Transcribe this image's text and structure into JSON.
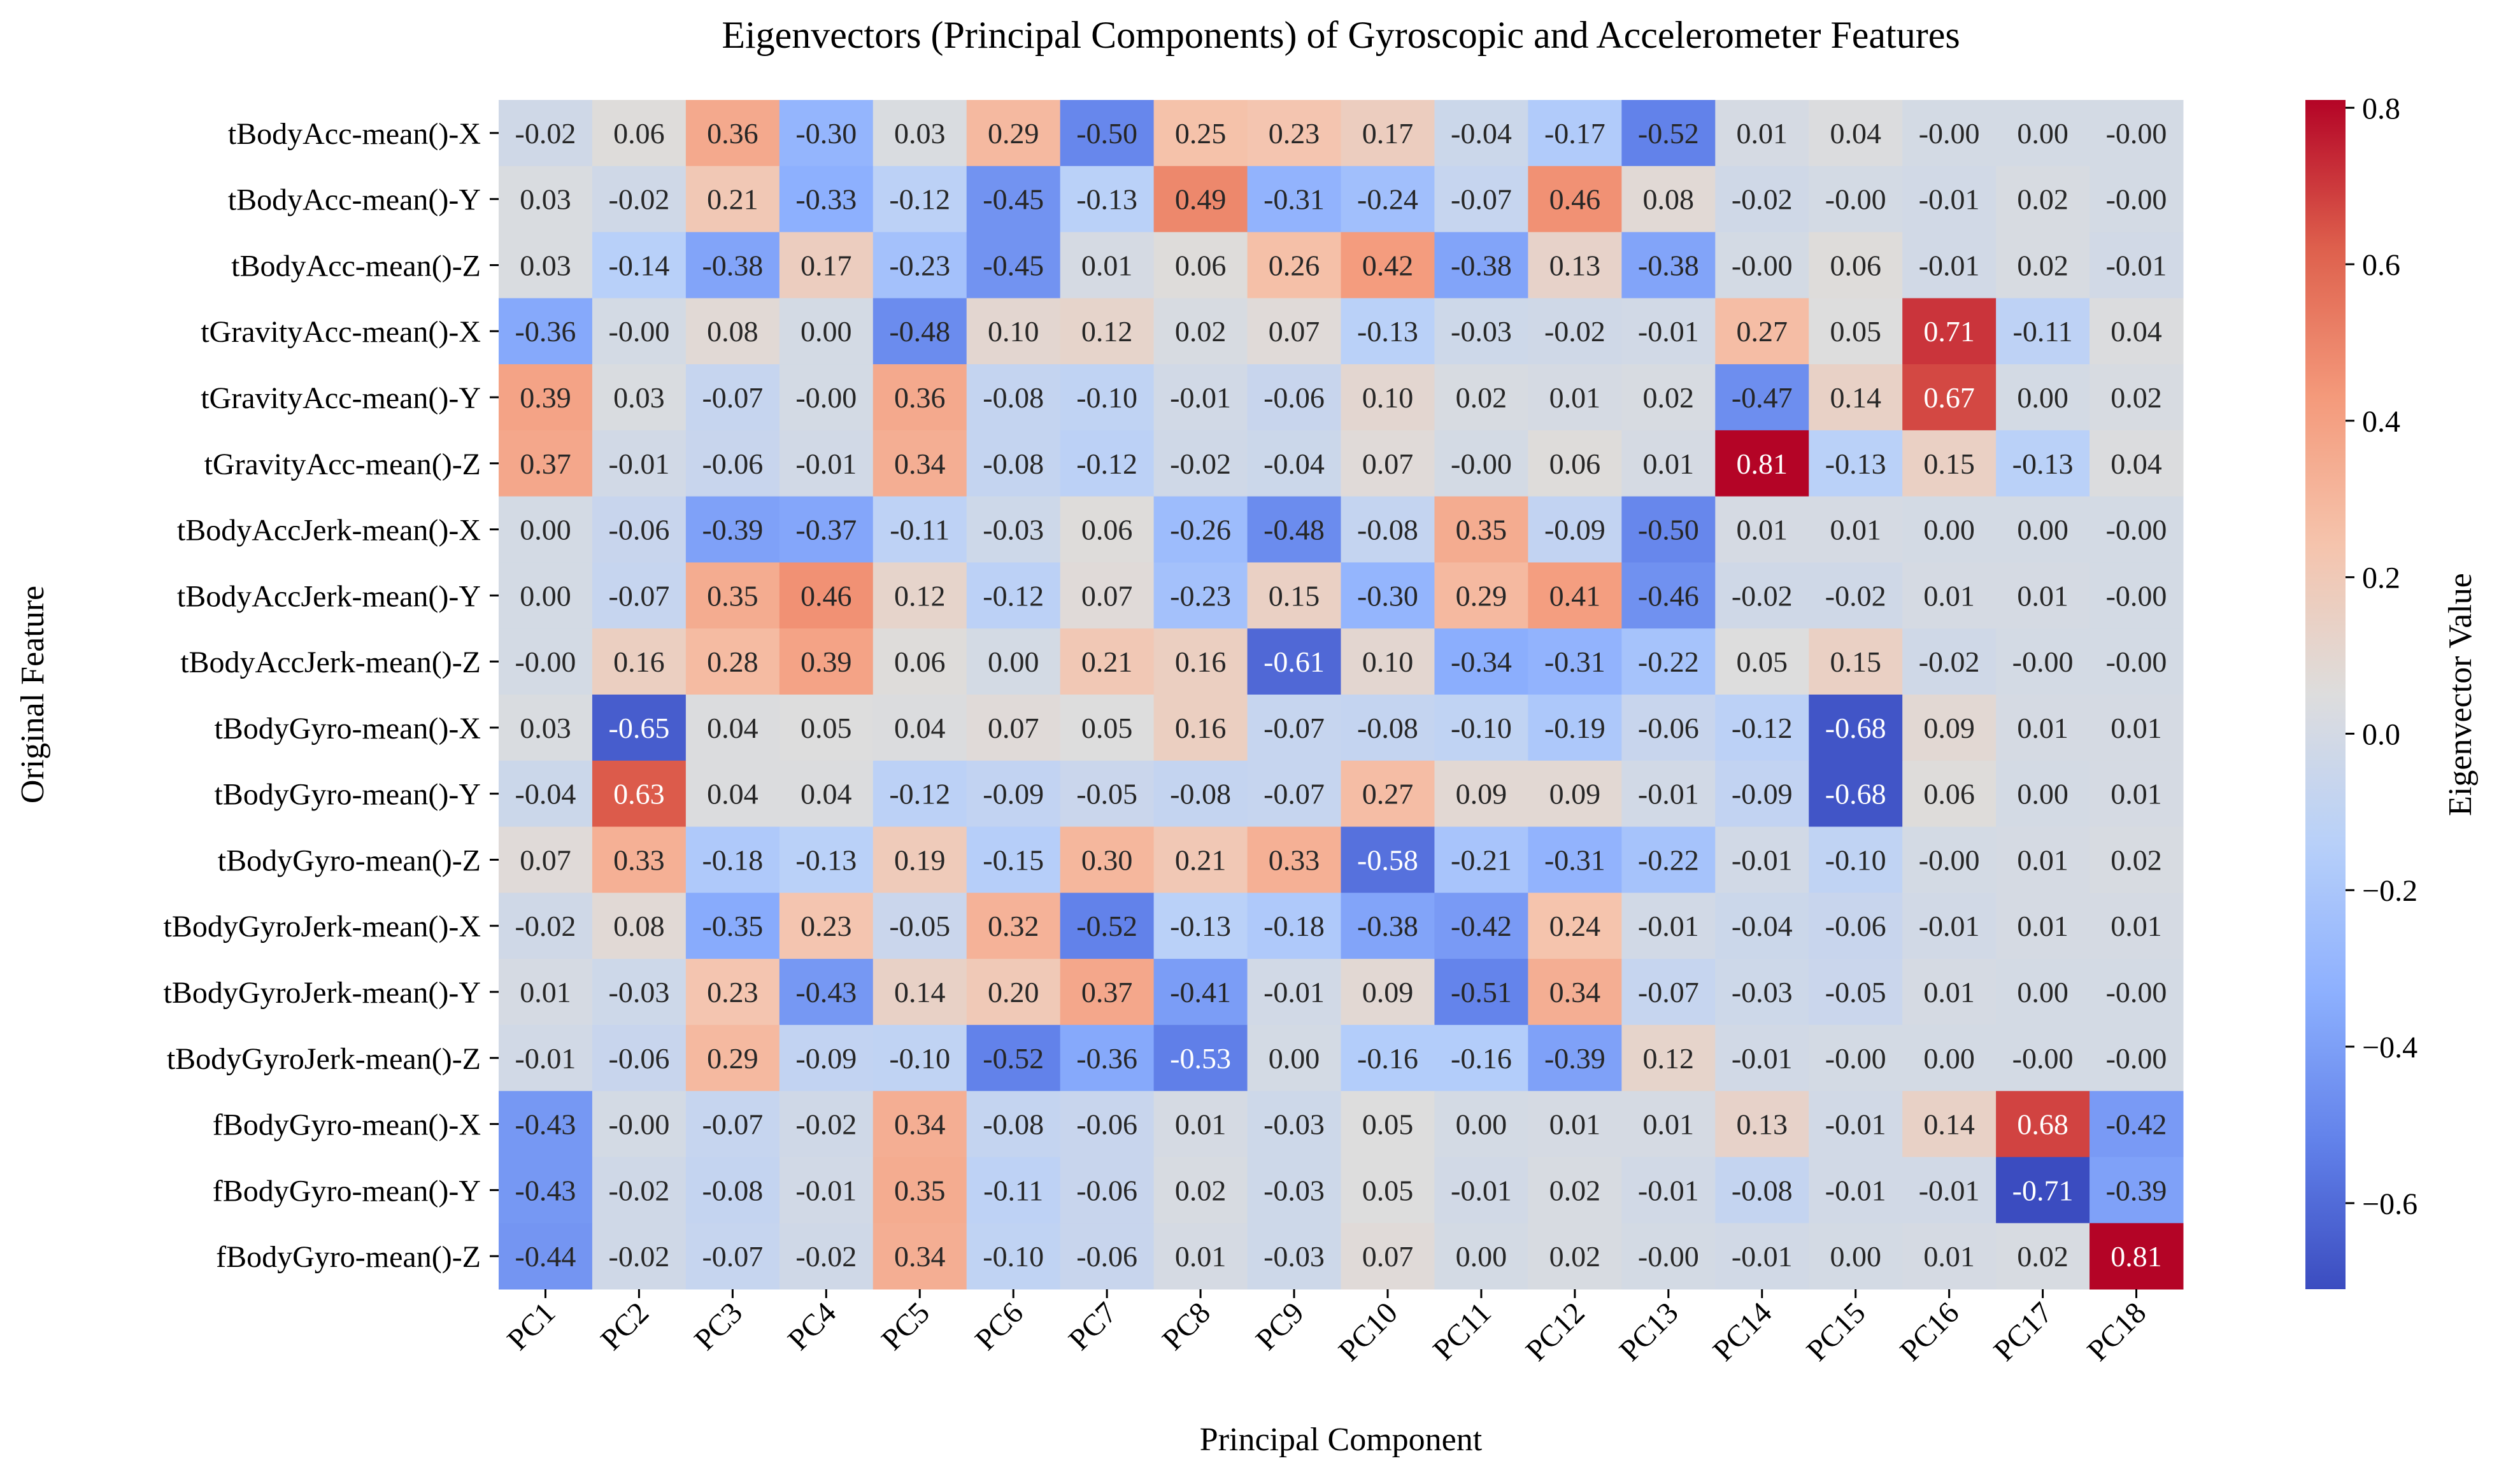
{
  "chart_data": {
    "type": "heatmap",
    "title": "Eigenvectors (Principal Components) of Gyroscopic and Accelerometer Features",
    "xlabel": "Principal Component",
    "ylabel": "Original Feature",
    "colorbar_label": "Eigenvector Value",
    "colormap": "coolwarm",
    "vmin": -0.71,
    "vmax": 0.81,
    "colorbar_ticks": [
      "0.8",
      "0.6",
      "0.4",
      "0.2",
      "0.0",
      "−0.2",
      "−0.4",
      "−0.6"
    ],
    "colorbar_tick_values": [
      0.8,
      0.6,
      0.4,
      0.2,
      0.0,
      -0.2,
      -0.4,
      -0.6
    ],
    "columns": [
      "PC1",
      "PC2",
      "PC3",
      "PC4",
      "PC5",
      "PC6",
      "PC7",
      "PC8",
      "PC9",
      "PC10",
      "PC11",
      "PC12",
      "PC13",
      "PC14",
      "PC15",
      "PC16",
      "PC17",
      "PC18"
    ],
    "rows": [
      "tBodyAcc-mean()-X",
      "tBodyAcc-mean()-Y",
      "tBodyAcc-mean()-Z",
      "tGravityAcc-mean()-X",
      "tGravityAcc-mean()-Y",
      "tGravityAcc-mean()-Z",
      "tBodyAccJerk-mean()-X",
      "tBodyAccJerk-mean()-Y",
      "tBodyAccJerk-mean()-Z",
      "tBodyGyro-mean()-X",
      "tBodyGyro-mean()-Y",
      "tBodyGyro-mean()-Z",
      "tBodyGyroJerk-mean()-X",
      "tBodyGyroJerk-mean()-Y",
      "tBodyGyroJerk-mean()-Z",
      "fBodyGyro-mean()-X",
      "fBodyGyro-mean()-Y",
      "fBodyGyro-mean()-Z"
    ],
    "labels": [
      [
        "-0.02",
        "0.06",
        "0.36",
        "-0.30",
        "0.03",
        "0.29",
        "-0.50",
        "0.25",
        "0.23",
        "0.17",
        "-0.04",
        "-0.17",
        "-0.52",
        "0.01",
        "0.04",
        "-0.00",
        "0.00",
        "-0.00"
      ],
      [
        "0.03",
        "-0.02",
        "0.21",
        "-0.33",
        "-0.12",
        "-0.45",
        "-0.13",
        "0.49",
        "-0.31",
        "-0.24",
        "-0.07",
        "0.46",
        "0.08",
        "-0.02",
        "-0.00",
        "-0.01",
        "0.02",
        "-0.00"
      ],
      [
        "0.03",
        "-0.14",
        "-0.38",
        "0.17",
        "-0.23",
        "-0.45",
        "0.01",
        "0.06",
        "0.26",
        "0.42",
        "-0.38",
        "0.13",
        "-0.38",
        "-0.00",
        "0.06",
        "-0.01",
        "0.02",
        "-0.01"
      ],
      [
        "-0.36",
        "-0.00",
        "0.08",
        "0.00",
        "-0.48",
        "0.10",
        "0.12",
        "0.02",
        "0.07",
        "-0.13",
        "-0.03",
        "-0.02",
        "-0.01",
        "0.27",
        "0.05",
        "0.71",
        "-0.11",
        "0.04"
      ],
      [
        "0.39",
        "0.03",
        "-0.07",
        "-0.00",
        "0.36",
        "-0.08",
        "-0.10",
        "-0.01",
        "-0.06",
        "0.10",
        "0.02",
        "0.01",
        "0.02",
        "-0.47",
        "0.14",
        "0.67",
        "0.00",
        "0.02"
      ],
      [
        "0.37",
        "-0.01",
        "-0.06",
        "-0.01",
        "0.34",
        "-0.08",
        "-0.12",
        "-0.02",
        "-0.04",
        "0.07",
        "-0.00",
        "0.06",
        "0.01",
        "0.81",
        "-0.13",
        "0.15",
        "-0.13",
        "0.04"
      ],
      [
        "0.00",
        "-0.06",
        "-0.39",
        "-0.37",
        "-0.11",
        "-0.03",
        "0.06",
        "-0.26",
        "-0.48",
        "-0.08",
        "0.35",
        "-0.09",
        "-0.50",
        "0.01",
        "0.01",
        "0.00",
        "0.00",
        "-0.00"
      ],
      [
        "0.00",
        "-0.07",
        "0.35",
        "0.46",
        "0.12",
        "-0.12",
        "0.07",
        "-0.23",
        "0.15",
        "-0.30",
        "0.29",
        "0.41",
        "-0.46",
        "-0.02",
        "-0.02",
        "0.01",
        "0.01",
        "-0.00"
      ],
      [
        "-0.00",
        "0.16",
        "0.28",
        "0.39",
        "0.06",
        "0.00",
        "0.21",
        "0.16",
        "-0.61",
        "0.10",
        "-0.34",
        "-0.31",
        "-0.22",
        "0.05",
        "0.15",
        "-0.02",
        "-0.00",
        "-0.00"
      ],
      [
        "0.03",
        "-0.65",
        "0.04",
        "0.05",
        "0.04",
        "0.07",
        "0.05",
        "0.16",
        "-0.07",
        "-0.08",
        "-0.10",
        "-0.19",
        "-0.06",
        "-0.12",
        "-0.68",
        "0.09",
        "0.01",
        "0.01"
      ],
      [
        "-0.04",
        "0.63",
        "0.04",
        "0.04",
        "-0.12",
        "-0.09",
        "-0.05",
        "-0.08",
        "-0.07",
        "0.27",
        "0.09",
        "0.09",
        "-0.01",
        "-0.09",
        "-0.68",
        "0.06",
        "0.00",
        "0.01"
      ],
      [
        "0.07",
        "0.33",
        "-0.18",
        "-0.13",
        "0.19",
        "-0.15",
        "0.30",
        "0.21",
        "0.33",
        "-0.58",
        "-0.21",
        "-0.31",
        "-0.22",
        "-0.01",
        "-0.10",
        "-0.00",
        "0.01",
        "0.02"
      ],
      [
        "-0.02",
        "0.08",
        "-0.35",
        "0.23",
        "-0.05",
        "0.32",
        "-0.52",
        "-0.13",
        "-0.18",
        "-0.38",
        "-0.42",
        "0.24",
        "-0.01",
        "-0.04",
        "-0.06",
        "-0.01",
        "0.01",
        "0.01"
      ],
      [
        "0.01",
        "-0.03",
        "0.23",
        "-0.43",
        "0.14",
        "0.20",
        "0.37",
        "-0.41",
        "-0.01",
        "0.09",
        "-0.51",
        "0.34",
        "-0.07",
        "-0.03",
        "-0.05",
        "0.01",
        "0.00",
        "-0.00"
      ],
      [
        "-0.01",
        "-0.06",
        "0.29",
        "-0.09",
        "-0.10",
        "-0.52",
        "-0.36",
        "-0.53",
        "0.00",
        "-0.16",
        "-0.16",
        "-0.39",
        "0.12",
        "-0.01",
        "-0.00",
        "0.00",
        "-0.00",
        "-0.00"
      ],
      [
        "-0.43",
        "-0.00",
        "-0.07",
        "-0.02",
        "0.34",
        "-0.08",
        "-0.06",
        "0.01",
        "-0.03",
        "0.05",
        "0.00",
        "0.01",
        "0.01",
        "0.13",
        "-0.01",
        "0.14",
        "0.68",
        "-0.42"
      ],
      [
        "-0.43",
        "-0.02",
        "-0.08",
        "-0.01",
        "0.35",
        "-0.11",
        "-0.06",
        "0.02",
        "-0.03",
        "0.05",
        "-0.01",
        "0.02",
        "-0.01",
        "-0.08",
        "-0.01",
        "-0.01",
        "-0.71",
        "-0.39"
      ],
      [
        "-0.44",
        "-0.02",
        "-0.07",
        "-0.02",
        "0.34",
        "-0.10",
        "-0.06",
        "0.01",
        "-0.03",
        "0.07",
        "0.00",
        "0.02",
        "-0.00",
        "-0.01",
        "0.00",
        "0.01",
        "0.02",
        "0.81"
      ]
    ]
  }
}
